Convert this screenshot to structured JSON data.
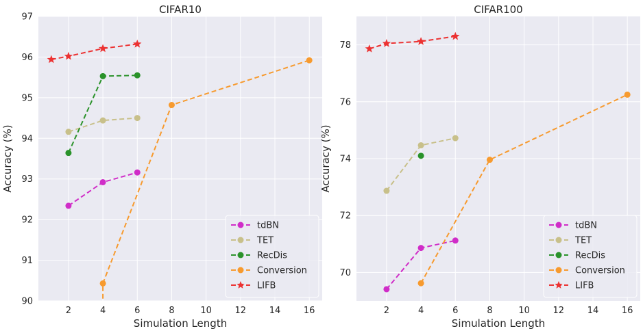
{
  "chart_data": [
    {
      "type": "line",
      "title": "CIFAR10",
      "xlabel": "Simulation Length",
      "ylabel": "Accuracy (%)",
      "xlim": [
        0.25,
        16.75
      ],
      "ylim": [
        90,
        97
      ],
      "xticks": [
        2,
        4,
        6,
        8,
        10,
        12,
        14,
        16
      ],
      "yticks": [
        90,
        91,
        92,
        93,
        94,
        95,
        96,
        97
      ],
      "grid": true,
      "legend_position": "lower-right",
      "series": [
        {
          "name": "tdBN",
          "color": "#d02dc8",
          "marker": "circle",
          "x": [
            2,
            4,
            6
          ],
          "y": [
            92.34,
            92.92,
            93.16
          ]
        },
        {
          "name": "TET",
          "color": "#c8c08a",
          "marker": "circle",
          "x": [
            2,
            4,
            6
          ],
          "y": [
            94.16,
            94.44,
            94.5
          ]
        },
        {
          "name": "RecDis",
          "color": "#2a922a",
          "marker": "circle",
          "x": [
            2,
            4,
            6
          ],
          "y": [
            93.64,
            95.53,
            95.55
          ]
        },
        {
          "name": "Conversion",
          "color": "#f79a2e",
          "marker": "circle",
          "x": [
            4,
            8,
            16
          ],
          "y": [
            90.43,
            94.82,
            95.92
          ],
          "x_extra_start": 4,
          "y_extra_start": 89.5
        },
        {
          "name": "LIFB",
          "color": "#ec3232",
          "marker": "star",
          "x": [
            1,
            2,
            4,
            6
          ],
          "y": [
            95.94,
            96.02,
            96.21,
            96.32
          ]
        }
      ]
    },
    {
      "type": "line",
      "title": "CIFAR100",
      "xlabel": "Simulation Length",
      "ylabel": "Accuracy (%)",
      "xlim": [
        0.25,
        16.75
      ],
      "ylim": [
        69.0,
        79.0
      ],
      "xticks": [
        2,
        4,
        6,
        8,
        10,
        12,
        14,
        16
      ],
      "yticks": [
        70,
        72,
        74,
        76,
        78
      ],
      "grid": true,
      "legend_position": "lower-right",
      "series": [
        {
          "name": "tdBN",
          "color": "#d02dc8",
          "marker": "circle",
          "x": [
            2,
            4,
            6
          ],
          "y": [
            69.41,
            70.86,
            71.12
          ]
        },
        {
          "name": "TET",
          "color": "#c8c08a",
          "marker": "circle",
          "x": [
            2,
            4,
            6
          ],
          "y": [
            72.87,
            74.47,
            74.72
          ]
        },
        {
          "name": "RecDis",
          "color": "#2a922a",
          "marker": "circle",
          "x": [
            4
          ],
          "y": [
            74.1
          ]
        },
        {
          "name": "Conversion",
          "color": "#f79a2e",
          "marker": "circle",
          "x": [
            4,
            8,
            16
          ],
          "y": [
            69.62,
            73.96,
            76.25
          ]
        },
        {
          "name": "LIFB",
          "color": "#ec3232",
          "marker": "star",
          "x": [
            1,
            2,
            4,
            6
          ],
          "y": [
            77.86,
            78.05,
            78.12,
            78.3
          ]
        }
      ]
    }
  ]
}
